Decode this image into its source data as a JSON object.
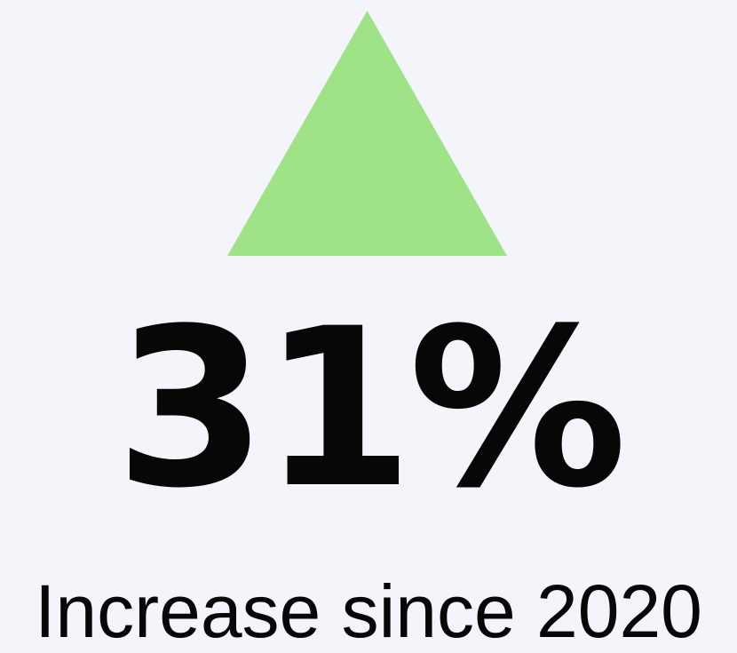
{
  "stat": {
    "value": "31%",
    "caption": "Increase since 2020",
    "trend_icon": "triangle-up-icon",
    "trend_color": "#a0e287"
  },
  "colors": {
    "background": "#f4f5fb",
    "text": "#070707"
  }
}
